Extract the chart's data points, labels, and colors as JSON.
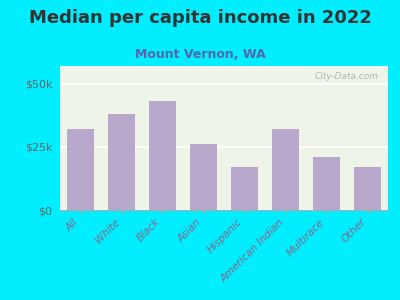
{
  "title": "Median per capita income in 2022",
  "subtitle": "Mount Vernon, WA",
  "categories": [
    "All",
    "White",
    "Black",
    "Asian",
    "Hispanic",
    "American Indian",
    "Multirace",
    "Other"
  ],
  "values": [
    32000,
    38000,
    43000,
    26000,
    17000,
    32000,
    21000,
    17000
  ],
  "bar_color": "#b8a9cc",
  "background_outer": "#00eeff",
  "background_inner": "#eef4e8",
  "title_color": "#333333",
  "subtitle_color": "#5566aa",
  "tick_label_color": "#666666",
  "x_label_color": "#886688",
  "yticks": [
    0,
    25000,
    50000
  ],
  "ytick_labels": [
    "$0",
    "$25k",
    "$50k"
  ],
  "ylim": [
    0,
    57000
  ],
  "watermark": "City-Data.com",
  "title_fontsize": 13,
  "subtitle_fontsize": 9
}
